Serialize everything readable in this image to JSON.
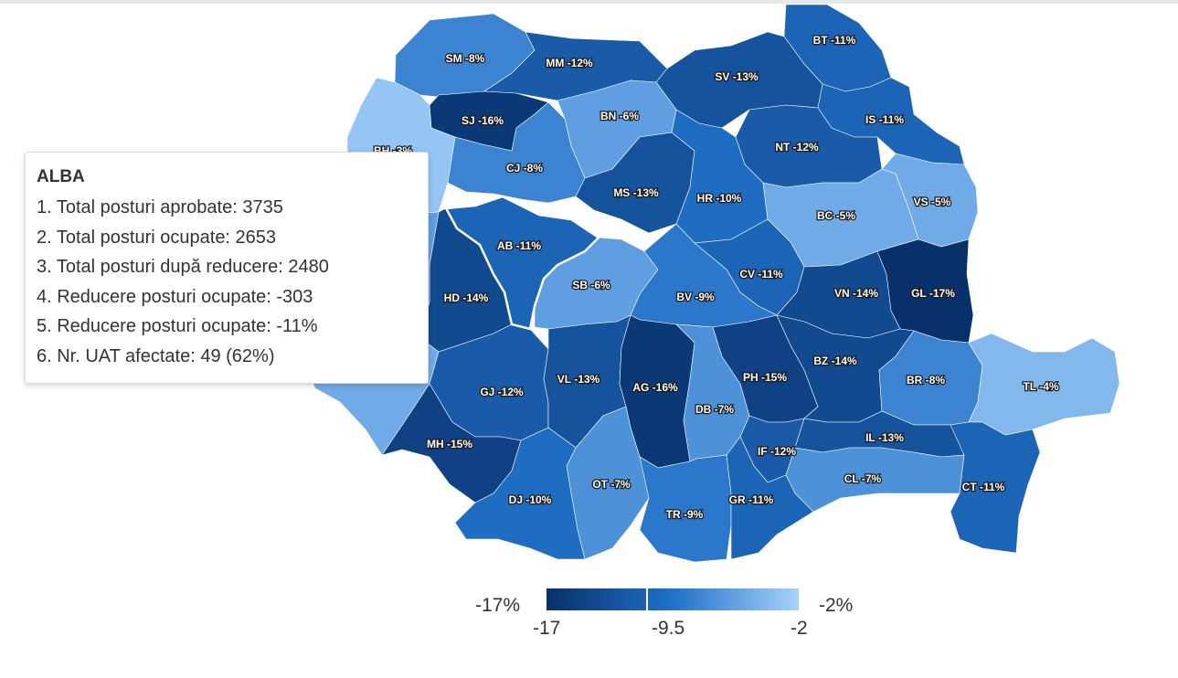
{
  "tooltip": {
    "title": "ALBA",
    "lines": [
      "1. Total posturi aprobate: 3735",
      "2. Total posturi ocupate: 2653",
      "3. Total posturi după reducere: 2480",
      "4. Reducere posturi ocupate: -303",
      "5. Reducere posturi ocupate: -11%",
      "6. Nr. UAT afectate: 49 (62%)"
    ]
  },
  "legend": {
    "min_label": "-17%",
    "max_label": "-2%",
    "tick_min": "-17",
    "tick_mid": "-9.5",
    "tick_max": "-2",
    "marker_value": -11,
    "colors": {
      "min": "#08306b",
      "mid": "#2171c8",
      "max": "#a6d2fb"
    }
  },
  "map": {
    "selected_county": "AB",
    "counties": [
      {
        "code": "SM",
        "value": -8,
        "label": "SM -8%"
      },
      {
        "code": "MM",
        "value": -12,
        "label": "MM -12%"
      },
      {
        "code": "BT",
        "value": -11,
        "label": "BT -11%"
      },
      {
        "code": "SV",
        "value": -13,
        "label": "SV -13%"
      },
      {
        "code": "SJ",
        "value": -16,
        "label": "SJ -16%"
      },
      {
        "code": "BN",
        "value": -6,
        "label": "BN -6%"
      },
      {
        "code": "IS",
        "value": -11,
        "label": "IS -11%"
      },
      {
        "code": "BH",
        "value": -3,
        "label": "BH -3%"
      },
      {
        "code": "CJ",
        "value": -8,
        "label": "CJ -8%"
      },
      {
        "code": "NT",
        "value": -12,
        "label": "NT -12%"
      },
      {
        "code": "MS",
        "value": -13,
        "label": "MS -13%"
      },
      {
        "code": "HR",
        "value": -10,
        "label": "HR -10%"
      },
      {
        "code": "BC",
        "value": -5,
        "label": "BC -5%"
      },
      {
        "code": "VS",
        "value": -5,
        "label": "VS -5%"
      },
      {
        "code": "AB",
        "value": -11,
        "label": "AB -11%"
      },
      {
        "code": "SB",
        "value": -6,
        "label": "SB -6%"
      },
      {
        "code": "CV",
        "value": -11,
        "label": "CV -11%"
      },
      {
        "code": "HD",
        "value": -14,
        "label": "HD -14%"
      },
      {
        "code": "BV",
        "value": -9,
        "label": "BV -9%"
      },
      {
        "code": "VN",
        "value": -14,
        "label": "VN -14%"
      },
      {
        "code": "GL",
        "value": -17,
        "label": "GL -17%"
      },
      {
        "code": "AR",
        "value": -6,
        "label": ""
      },
      {
        "code": "TM",
        "value": -7,
        "label": ""
      },
      {
        "code": "CS",
        "value": -5,
        "label": ""
      },
      {
        "code": "GJ",
        "value": -12,
        "label": "GJ -12%"
      },
      {
        "code": "VL",
        "value": -13,
        "label": "VL -13%"
      },
      {
        "code": "AG",
        "value": -16,
        "label": "AG -16%"
      },
      {
        "code": "DB",
        "value": -7,
        "label": "DB -7%"
      },
      {
        "code": "PH",
        "value": -15,
        "label": "PH -15%"
      },
      {
        "code": "BZ",
        "value": -14,
        "label": "BZ -14%"
      },
      {
        "code": "BR",
        "value": -8,
        "label": "BR -8%"
      },
      {
        "code": "TL",
        "value": -4,
        "label": "TL -4%"
      },
      {
        "code": "MH",
        "value": -15,
        "label": "MH -15%"
      },
      {
        "code": "IF",
        "value": -12,
        "label": "IF -12%"
      },
      {
        "code": "IL",
        "value": -13,
        "label": "IL -13%"
      },
      {
        "code": "OT",
        "value": -7,
        "label": "OT -7%"
      },
      {
        "code": "DJ",
        "value": -10,
        "label": "DJ -10%"
      },
      {
        "code": "CL",
        "value": -7,
        "label": "CL -7%"
      },
      {
        "code": "CT",
        "value": -11,
        "label": "CT -11%"
      },
      {
        "code": "TR",
        "value": -9,
        "label": "TR -9%"
      },
      {
        "code": "GR",
        "value": -11,
        "label": "GR -11%"
      }
    ]
  }
}
